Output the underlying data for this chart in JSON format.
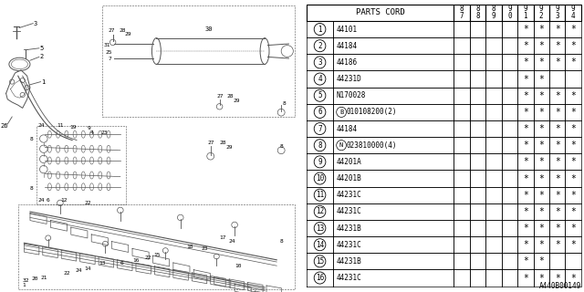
{
  "fig_width": 6.4,
  "fig_height": 3.2,
  "dpi": 100,
  "bg_color": "#ffffff",
  "table": {
    "rows": [
      {
        "num": "1",
        "part": "44101",
        "b_prefix": false,
        "n_prefix": false,
        "stars": [
          0,
          0,
          0,
          0,
          1,
          1,
          1,
          1
        ]
      },
      {
        "num": "2",
        "part": "44184",
        "b_prefix": false,
        "n_prefix": false,
        "stars": [
          0,
          0,
          0,
          0,
          1,
          1,
          1,
          1
        ]
      },
      {
        "num": "3",
        "part": "44186",
        "b_prefix": false,
        "n_prefix": false,
        "stars": [
          0,
          0,
          0,
          0,
          1,
          1,
          1,
          1
        ]
      },
      {
        "num": "4",
        "part": "44231D",
        "b_prefix": false,
        "n_prefix": false,
        "stars": [
          0,
          0,
          0,
          0,
          1,
          1,
          0,
          0
        ]
      },
      {
        "num": "5",
        "part": "N170028",
        "b_prefix": false,
        "n_prefix": false,
        "stars": [
          0,
          0,
          0,
          0,
          1,
          1,
          1,
          1
        ]
      },
      {
        "num": "6",
        "part": "010108200(2)",
        "b_prefix": true,
        "n_prefix": false,
        "stars": [
          0,
          0,
          0,
          0,
          1,
          1,
          1,
          1
        ]
      },
      {
        "num": "7",
        "part": "44184",
        "b_prefix": false,
        "n_prefix": false,
        "stars": [
          0,
          0,
          0,
          0,
          1,
          1,
          1,
          1
        ]
      },
      {
        "num": "8",
        "part": "023810000(4)",
        "b_prefix": false,
        "n_prefix": true,
        "stars": [
          0,
          0,
          0,
          0,
          1,
          1,
          1,
          1
        ]
      },
      {
        "num": "9",
        "part": "44201A",
        "b_prefix": false,
        "n_prefix": false,
        "stars": [
          0,
          0,
          0,
          0,
          1,
          1,
          1,
          1
        ]
      },
      {
        "num": "10",
        "part": "44201B",
        "b_prefix": false,
        "n_prefix": false,
        "stars": [
          0,
          0,
          0,
          0,
          1,
          1,
          1,
          1
        ]
      },
      {
        "num": "11",
        "part": "44231C",
        "b_prefix": false,
        "n_prefix": false,
        "stars": [
          0,
          0,
          0,
          0,
          1,
          1,
          1,
          1
        ]
      },
      {
        "num": "12",
        "part": "44231C",
        "b_prefix": false,
        "n_prefix": false,
        "stars": [
          0,
          0,
          0,
          0,
          1,
          1,
          1,
          1
        ]
      },
      {
        "num": "13",
        "part": "44231B",
        "b_prefix": false,
        "n_prefix": false,
        "stars": [
          0,
          0,
          0,
          0,
          1,
          1,
          1,
          1
        ]
      },
      {
        "num": "14",
        "part": "44231C",
        "b_prefix": false,
        "n_prefix": false,
        "stars": [
          0,
          0,
          0,
          0,
          1,
          1,
          1,
          1
        ]
      },
      {
        "num": "15",
        "part": "44231B",
        "b_prefix": false,
        "n_prefix": false,
        "stars": [
          0,
          0,
          0,
          0,
          1,
          1,
          0,
          0
        ]
      },
      {
        "num": "16",
        "part": "44231C",
        "b_prefix": false,
        "n_prefix": false,
        "stars": [
          0,
          0,
          0,
          0,
          1,
          1,
          1,
          1
        ]
      }
    ]
  },
  "year_labels": [
    "8\n7",
    "8\n8",
    "8\n9",
    "9\n0",
    "9\n1",
    "9\n2",
    "9\n3",
    "9\n4"
  ],
  "footnote": "A440B00149",
  "lc": "#555555",
  "tc": "#000000",
  "star_char": "*"
}
